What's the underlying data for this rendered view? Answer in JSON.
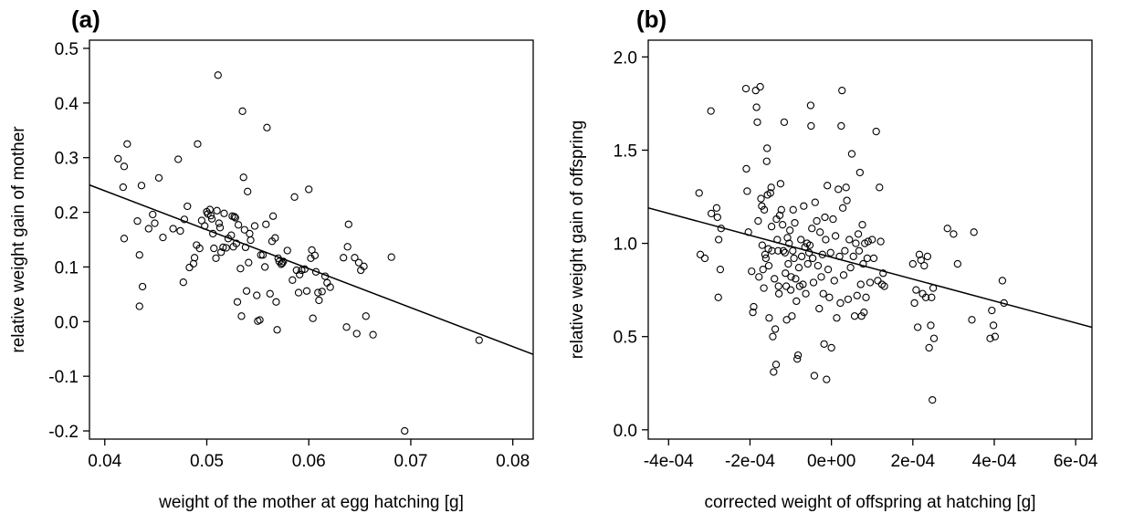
{
  "chart_data": [
    {
      "type": "scatter",
      "panel_label": "(a)",
      "xlabel": "weight of the mother at egg hatching [g]",
      "ylabel": "relative weight gain of mother",
      "xlim": [
        0.0385,
        0.082
      ],
      "ylim": [
        -0.215,
        0.515
      ],
      "x_ticks": [
        0.04,
        0.05,
        0.06,
        0.07,
        0.08
      ],
      "x_tick_labels": [
        "0.04",
        "0.05",
        "0.06",
        "0.07",
        "0.08"
      ],
      "y_ticks": [
        -0.2,
        -0.1,
        0.0,
        0.1,
        0.2,
        0.3,
        0.4,
        0.5
      ],
      "y_tick_labels": [
        "-0.2",
        "-0.1",
        "0.0",
        "0.1",
        "0.2",
        "0.3",
        "0.4",
        "0.5"
      ],
      "grid": false,
      "trend_line": {
        "x": [
          0.0385,
          0.082
        ],
        "y": [
          0.25,
          -0.06
        ]
      },
      "points": [
        [
          0.0413,
          0.298
        ],
        [
          0.0418,
          0.246
        ],
        [
          0.0419,
          0.284
        ],
        [
          0.0422,
          0.325
        ],
        [
          0.0419,
          0.152
        ],
        [
          0.0432,
          0.184
        ],
        [
          0.0434,
          0.122
        ],
        [
          0.0436,
          0.249
        ],
        [
          0.0434,
          0.028
        ],
        [
          0.0437,
          0.064
        ],
        [
          0.0443,
          0.17
        ],
        [
          0.0447,
          0.196
        ],
        [
          0.0449,
          0.18
        ],
        [
          0.0453,
          0.263
        ],
        [
          0.0457,
          0.154
        ],
        [
          0.0467,
          0.17
        ],
        [
          0.0472,
          0.297
        ],
        [
          0.0474,
          0.166
        ],
        [
          0.0477,
          0.072
        ],
        [
          0.0478,
          0.187
        ],
        [
          0.0481,
          0.211
        ],
        [
          0.0483,
          0.099
        ],
        [
          0.0487,
          0.106
        ],
        [
          0.0488,
          0.117
        ],
        [
          0.049,
          0.14
        ],
        [
          0.0491,
          0.325
        ],
        [
          0.0493,
          0.134
        ],
        [
          0.0495,
          0.185
        ],
        [
          0.0498,
          0.175
        ],
        [
          0.05,
          0.201
        ],
        [
          0.0501,
          0.197
        ],
        [
          0.0503,
          0.205
        ],
        [
          0.0504,
          0.194
        ],
        [
          0.0505,
          0.188
        ],
        [
          0.0506,
          0.161
        ],
        [
          0.0507,
          0.134
        ],
        [
          0.0509,
          0.116
        ],
        [
          0.051,
          0.203
        ],
        [
          0.0511,
          0.451
        ],
        [
          0.0512,
          0.18
        ],
        [
          0.0513,
          0.172
        ],
        [
          0.0514,
          0.127
        ],
        [
          0.0516,
          0.136
        ],
        [
          0.0517,
          0.198
        ],
        [
          0.0519,
          0.135
        ],
        [
          0.0521,
          0.152
        ],
        [
          0.0524,
          0.158
        ],
        [
          0.0525,
          0.193
        ],
        [
          0.0526,
          0.137
        ],
        [
          0.0527,
          0.192
        ],
        [
          0.0528,
          0.19
        ],
        [
          0.0529,
          0.143
        ],
        [
          0.053,
          0.036
        ],
        [
          0.0531,
          0.177
        ],
        [
          0.0533,
          0.097
        ],
        [
          0.0534,
          0.01
        ],
        [
          0.0535,
          0.385
        ],
        [
          0.0536,
          0.264
        ],
        [
          0.0537,
          0.168
        ],
        [
          0.0538,
          0.136
        ],
        [
          0.0539,
          0.056
        ],
        [
          0.054,
          0.238
        ],
        [
          0.0541,
          0.108
        ],
        [
          0.0542,
          0.161
        ],
        [
          0.0543,
          0.149
        ],
        [
          0.0547,
          0.175
        ],
        [
          0.0549,
          0.048
        ],
        [
          0.055,
          0.001
        ],
        [
          0.0552,
          0.003
        ],
        [
          0.0553,
          0.122
        ],
        [
          0.0555,
          0.122
        ],
        [
          0.0557,
          0.1
        ],
        [
          0.0558,
          0.178
        ],
        [
          0.0559,
          0.355
        ],
        [
          0.0562,
          0.051
        ],
        [
          0.0564,
          0.147
        ],
        [
          0.0565,
          0.193
        ],
        [
          0.0567,
          0.153
        ],
        [
          0.0568,
          0.036
        ],
        [
          0.0569,
          -0.015
        ],
        [
          0.057,
          0.116
        ],
        [
          0.0571,
          0.11
        ],
        [
          0.0573,
          0.105
        ],
        [
          0.0574,
          0.107
        ],
        [
          0.0575,
          0.11
        ],
        [
          0.0579,
          0.13
        ],
        [
          0.0584,
          0.076
        ],
        [
          0.0586,
          0.228
        ],
        [
          0.0588,
          0.094
        ],
        [
          0.059,
          0.053
        ],
        [
          0.0591,
          0.086
        ],
        [
          0.0593,
          0.094
        ],
        [
          0.0596,
          0.096
        ],
        [
          0.0598,
          0.056
        ],
        [
          0.06,
          0.242
        ],
        [
          0.0602,
          0.116
        ],
        [
          0.0603,
          0.131
        ],
        [
          0.0604,
          0.006
        ],
        [
          0.0606,
          0.121
        ],
        [
          0.0607,
          0.091
        ],
        [
          0.0609,
          0.053
        ],
        [
          0.061,
          0.039
        ],
        [
          0.0613,
          0.055
        ],
        [
          0.0616,
          0.083
        ],
        [
          0.0618,
          0.071
        ],
        [
          0.0621,
          0.063
        ],
        [
          0.0634,
          0.117
        ],
        [
          0.0637,
          -0.01
        ],
        [
          0.0638,
          0.137
        ],
        [
          0.0639,
          0.178
        ],
        [
          0.0645,
          0.117
        ],
        [
          0.0647,
          -0.022
        ],
        [
          0.0649,
          0.108
        ],
        [
          0.0651,
          0.094
        ],
        [
          0.0654,
          0.101
        ],
        [
          0.0656,
          0.01
        ],
        [
          0.0663,
          -0.024
        ],
        [
          0.0681,
          0.118
        ],
        [
          0.0694,
          -0.2
        ],
        [
          0.0767,
          -0.034
        ]
      ]
    },
    {
      "type": "scatter",
      "panel_label": "(b)",
      "xlabel": "corrected weight of offspring at hatching [g]",
      "ylabel": "relative weight gain of offspring",
      "xlim": [
        -0.00045,
        0.00064
      ],
      "ylim": [
        -0.05,
        2.09
      ],
      "x_ticks": [
        -0.0004,
        -0.0002,
        0.0,
        0.0002,
        0.0004,
        0.0006
      ],
      "x_tick_labels": [
        "-4e-04",
        "-2e-04",
        "0e+00",
        "2e-04",
        "4e-04",
        "6e-04"
      ],
      "y_ticks": [
        0.0,
        0.5,
        1.0,
        1.5,
        2.0
      ],
      "y_tick_labels": [
        "0.0",
        "0.5",
        "1.0",
        "1.5",
        "2.0"
      ],
      "grid": false,
      "trend_line": {
        "x": [
          -0.00045,
          0.00064
        ],
        "y": [
          1.19,
          0.55
        ]
      },
      "points": [
        [
          -0.000325,
          1.27
        ],
        [
          -0.000322,
          0.94
        ],
        [
          -0.000311,
          0.92
        ],
        [
          -0.000296,
          1.71
        ],
        [
          -0.000295,
          1.16
        ],
        [
          -0.000282,
          1.19
        ],
        [
          -0.00028,
          1.14
        ],
        [
          -0.000278,
          0.71
        ],
        [
          -0.000277,
          1.02
        ],
        [
          -0.000273,
          0.86
        ],
        [
          -0.000271,
          1.08
        ],
        [
          -0.00021,
          1.83
        ],
        [
          -0.000209,
          1.4
        ],
        [
          -0.000207,
          1.28
        ],
        [
          -0.000204,
          1.06
        ],
        [
          -0.000196,
          0.85
        ],
        [
          -0.000193,
          0.63
        ],
        [
          -0.000191,
          0.66
        ],
        [
          -0.000186,
          1.82
        ],
        [
          -0.000184,
          1.73
        ],
        [
          -0.000182,
          1.65
        ],
        [
          -0.00018,
          1.12
        ],
        [
          -0.000178,
          0.82
        ],
        [
          -0.000175,
          1.84
        ],
        [
          -0.000173,
          1.24
        ],
        [
          -0.000171,
          1.2
        ],
        [
          -0.00017,
          0.99
        ],
        [
          -0.000168,
          0.86
        ],
        [
          -0.000166,
          0.76
        ],
        [
          -0.000165,
          1.18
        ],
        [
          -0.000163,
          0.94
        ],
        [
          -0.000161,
          0.92
        ],
        [
          -0.000159,
          1.44
        ],
        [
          -0.000158,
          1.51
        ],
        [
          -0.000157,
          1.26
        ],
        [
          -0.000155,
          0.97
        ],
        [
          -0.000154,
          0.88
        ],
        [
          -0.000153,
          0.6
        ],
        [
          -0.00015,
          1.27
        ],
        [
          -0.000148,
          1.3
        ],
        [
          -0.000147,
          1.09
        ],
        [
          -0.000146,
          0.96
        ],
        [
          -0.000144,
          0.5
        ],
        [
          -0.000142,
          0.31
        ],
        [
          -0.00014,
          0.81
        ],
        [
          -0.000138,
          0.54
        ],
        [
          -0.000136,
          0.35
        ],
        [
          -0.000135,
          1.13
        ],
        [
          -0.000133,
          1.02
        ],
        [
          -0.000131,
          0.96
        ],
        [
          -0.00013,
          0.77
        ],
        [
          -0.000129,
          0.73
        ],
        [
          -0.000127,
          1.15
        ],
        [
          -0.000125,
          1.32
        ],
        [
          -0.000123,
          1.18
        ],
        [
          -0.00012,
          1.1
        ],
        [
          -0.000118,
          0.96
        ],
        [
          -0.000116,
          1.65
        ],
        [
          -0.000114,
          0.95
        ],
        [
          -0.000113,
          0.84
        ],
        [
          -0.000111,
          0.77
        ],
        [
          -0.00011,
          0.59
        ],
        [
          -0.000108,
          1.03
        ],
        [
          -0.000106,
          0.89
        ],
        [
          -0.000104,
          1.0
        ],
        [
          -0.000102,
          1.07
        ],
        [
          -0.0001,
          0.75
        ],
        [
          -9.9e-05,
          0.82
        ],
        [
          -9.7e-05,
          0.61
        ],
        [
          -9.5e-05,
          0.96
        ],
        [
          -9.4e-05,
          1.18
        ],
        [
          -9.2e-05,
          0.92
        ],
        [
          -9e-05,
          1.11
        ],
        [
          -8.8e-05,
          0.81
        ],
        [
          -8.6e-05,
          0.69
        ],
        [
          -8.4e-05,
          0.38
        ],
        [
          -8.2e-05,
          0.4
        ],
        [
          -8e-05,
          0.87
        ],
        [
          -7.8e-05,
          0.77
        ],
        [
          -7.5e-05,
          1.02
        ],
        [
          -7.3e-05,
          0.93
        ],
        [
          -7e-05,
          0.78
        ],
        [
          -6.8e-05,
          1.2
        ],
        [
          -6.5e-05,
          0.98
        ],
        [
          -6.3e-05,
          0.73
        ],
        [
          -6e-05,
          1.0
        ],
        [
          -5.8e-05,
          0.89
        ],
        [
          -5.5e-05,
          0.95
        ],
        [
          -5.3e-05,
          0.99
        ],
        [
          -5.1e-05,
          1.74
        ],
        [
          -5e-05,
          1.63
        ],
        [
          -4.8e-05,
          1.08
        ],
        [
          -4.6e-05,
          0.92
        ],
        [
          -4.4e-05,
          0.79
        ],
        [
          -4.2e-05,
          0.29
        ],
        [
          -4e-05,
          1.22
        ],
        [
          -3.6e-05,
          1.12
        ],
        [
          -3.3e-05,
          0.88
        ],
        [
          -3e-05,
          0.65
        ],
        [
          -2.8e-05,
          1.06
        ],
        [
          -2.5e-05,
          0.82
        ],
        [
          -2.2e-05,
          0.94
        ],
        [
          -2e-05,
          0.73
        ],
        [
          -1.8e-05,
          0.46
        ],
        [
          -1.6e-05,
          1.14
        ],
        [
          -1.4e-05,
          1.02
        ],
        [
          -1.2e-05,
          0.27
        ],
        [
          -1e-05,
          1.31
        ],
        [
          -8e-06,
          0.86
        ],
        [
          -5e-06,
          0.71
        ],
        [
          -2e-06,
          0.95
        ],
        [
          0.0,
          0.44
        ],
        [
          4e-06,
          1.13
        ],
        [
          7e-06,
          0.8
        ],
        [
          1e-05,
          1.04
        ],
        [
          1.3e-05,
          0.6
        ],
        [
          1.7e-05,
          1.29
        ],
        [
          2e-05,
          0.93
        ],
        [
          2.2e-05,
          0.68
        ],
        [
          2.4e-05,
          1.63
        ],
        [
          2.6e-05,
          1.82
        ],
        [
          2.8e-05,
          1.19
        ],
        [
          3e-05,
          0.83
        ],
        [
          3.3e-05,
          0.96
        ],
        [
          3.6e-05,
          1.3
        ],
        [
          3.8e-05,
          1.23
        ],
        [
          4.1e-05,
          0.7
        ],
        [
          4.4e-05,
          1.02
        ],
        [
          4.7e-05,
          0.87
        ],
        [
          5e-05,
          1.48
        ],
        [
          5.4e-05,
          0.93
        ],
        [
          5.7e-05,
          0.61
        ],
        [
          6e-05,
          1.0
        ],
        [
          6.3e-05,
          0.72
        ],
        [
          6.6e-05,
          1.05
        ],
        [
          6.8e-05,
          0.96
        ],
        [
          7e-05,
          1.38
        ],
        [
          7.2e-05,
          0.78
        ],
        [
          7.4e-05,
          0.61
        ],
        [
          7.6e-05,
          1.1
        ],
        [
          7.8e-05,
          0.89
        ],
        [
          8e-05,
          0.63
        ],
        [
          8.2e-05,
          1.0
        ],
        [
          8.5e-05,
          0.71
        ],
        [
          8.8e-05,
          0.92
        ],
        [
          9e-05,
          1.01
        ],
        [
          9.5e-05,
          0.79
        ],
        [
          0.0001,
          1.02
        ],
        [
          0.000104,
          0.92
        ],
        [
          0.00011,
          1.6
        ],
        [
          0.000114,
          0.8
        ],
        [
          0.000118,
          1.3
        ],
        [
          0.000121,
          1.01
        ],
        [
          0.000124,
          0.78
        ],
        [
          0.000127,
          0.84
        ],
        [
          0.00013,
          0.77
        ],
        [
          0.0002,
          0.89
        ],
        [
          0.000204,
          0.68
        ],
        [
          0.000208,
          0.75
        ],
        [
          0.000212,
          0.55
        ],
        [
          0.000216,
          0.94
        ],
        [
          0.00022,
          0.91
        ],
        [
          0.000224,
          0.73
        ],
        [
          0.000228,
          0.88
        ],
        [
          0.000232,
          0.71
        ],
        [
          0.000236,
          0.93
        ],
        [
          0.00024,
          0.44
        ],
        [
          0.000244,
          0.56
        ],
        [
          0.000246,
          0.71
        ],
        [
          0.000248,
          0.16
        ],
        [
          0.00025,
          0.76
        ],
        [
          0.000252,
          0.49
        ],
        [
          0.000285,
          1.08
        ],
        [
          0.0003,
          1.05
        ],
        [
          0.00031,
          0.89
        ],
        [
          0.000345,
          0.59
        ],
        [
          0.00035,
          1.06
        ],
        [
          0.00039,
          0.49
        ],
        [
          0.000394,
          0.64
        ],
        [
          0.000398,
          0.56
        ],
        [
          0.000402,
          0.5
        ],
        [
          0.00042,
          0.8
        ],
        [
          0.000424,
          0.68
        ]
      ]
    }
  ]
}
